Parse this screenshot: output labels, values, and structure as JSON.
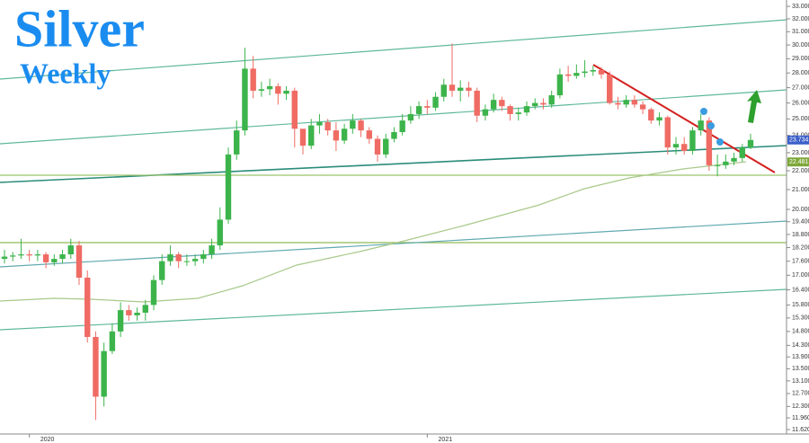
{
  "chart_data": {
    "type": "candlestick",
    "title": "Silver",
    "subtitle": "Weekly",
    "log_scale": true,
    "grid": false,
    "up_color": "#3cb44b",
    "down_color": "#ef6b64",
    "ylim": [
      11.24,
      33.52
    ],
    "yticks": [
      {
        "value": 33,
        "label": "33.000"
      },
      {
        "value": 32,
        "label": "32.000"
      },
      {
        "value": 31,
        "label": "31.000"
      },
      {
        "value": 30,
        "label": "30.000"
      },
      {
        "value": 29,
        "label": "29.000"
      },
      {
        "value": 28,
        "label": "28.000"
      },
      {
        "value": 27,
        "label": "27.000"
      },
      {
        "value": 26,
        "label": "26.000"
      },
      {
        "value": 25,
        "label": "25.000"
      },
      {
        "value": 24,
        "label": "24.000"
      },
      {
        "value": 23,
        "label": "23.000"
      },
      {
        "value": 22,
        "label": "22.000"
      },
      {
        "value": 21,
        "label": "21.000"
      },
      {
        "value": 20,
        "label": "20.000"
      },
      {
        "value": 19.4,
        "label": "19.400"
      },
      {
        "value": 18.8,
        "label": "18.800"
      },
      {
        "value": 18.2,
        "label": "18.200"
      },
      {
        "value": 17.6,
        "label": "17.600"
      },
      {
        "value": 17,
        "label": "17.000"
      },
      {
        "value": 16.4,
        "label": "16.400"
      },
      {
        "value": 15.8,
        "label": "15.800"
      },
      {
        "value": 15.3,
        "label": "15.300"
      },
      {
        "value": 14.8,
        "label": "14.800"
      },
      {
        "value": 14.3,
        "label": "14.300"
      },
      {
        "value": 13.9,
        "label": "13.900"
      },
      {
        "value": 13.5,
        "label": "13.500"
      },
      {
        "value": 13.1,
        "label": "13.100"
      },
      {
        "value": 12.7,
        "label": "12.700"
      },
      {
        "value": 12.3,
        "label": "12.300"
      },
      {
        "value": 11.96,
        "label": "11.960"
      },
      {
        "value": 11.62,
        "label": "11.620"
      }
    ],
    "categories": [
      null,
      null,
      null,
      "2020",
      null,
      null,
      null,
      null,
      null,
      null,
      null,
      null,
      null,
      null,
      null,
      null,
      null,
      null,
      null,
      null,
      null,
      null,
      null,
      null,
      null,
      null,
      null,
      null,
      null,
      null,
      null,
      null,
      null,
      null,
      null,
      null,
      null,
      null,
      null,
      null,
      null,
      null,
      null,
      null,
      null,
      null,
      null,
      null,
      null,
      null,
      null,
      "2021",
      null,
      null,
      null,
      null,
      null,
      null,
      null,
      null,
      null,
      null,
      null,
      null,
      null,
      null,
      null,
      null,
      null,
      null,
      null,
      null,
      null,
      null,
      null,
      null,
      null,
      null,
      null,
      null,
      null,
      null,
      null,
      null,
      null,
      null,
      null,
      null,
      null,
      null,
      null
    ],
    "open": [
      17.7,
      17.8,
      17.85,
      17.9,
      17.85,
      17.9,
      17.55,
      17.7,
      17.9,
      18.3,
      16.9,
      14.6,
      12.6,
      14.1,
      14.8,
      15.6,
      15.4,
      15.5,
      15.8,
      16.8,
      17.6,
      17.9,
      17.6,
      17.6,
      17.7,
      17.9,
      18.3,
      19.5,
      22.9,
      24.3,
      28.3,
      26.8,
      26.9,
      27.1,
      26.6,
      26.8,
      24.4,
      23.4,
      24.6,
      24.8,
      24.3,
      23.7,
      24.4,
      24.9,
      24.3,
      23.8,
      22.9,
      23.8,
      24.2,
      24.9,
      25.3,
      25.8,
      25.7,
      26.4,
      27.2,
      26.8,
      27.0,
      26.8,
      25.2,
      25.6,
      26.2,
      25.8,
      25.3,
      25.4,
      25.8,
      26.0,
      25.9,
      26.5,
      27.9,
      27.8,
      28.0,
      28.1,
      28.2,
      27.9,
      26.0,
      25.9,
      26.2,
      25.9,
      25.6,
      24.9,
      25.1,
      23.3,
      23.5,
      23.1,
      24.3,
      24.9,
      22.3,
      22.3,
      22.5,
      22.7,
      23.3
    ],
    "high": [
      18.1,
      18.0,
      18.6,
      18.1,
      18.1,
      18.0,
      17.9,
      18.1,
      18.6,
      18.5,
      17.2,
      14.8,
      14.4,
      15.1,
      15.9,
      15.8,
      15.7,
      16.0,
      17.0,
      17.9,
      18.3,
      18.0,
      17.9,
      17.9,
      18.1,
      18.6,
      20.1,
      23.3,
      24.9,
      29.8,
      29.2,
      27.4,
      27.6,
      27.3,
      27.1,
      27.0,
      24.2,
      25.0,
      25.3,
      25.0,
      24.8,
      24.7,
      25.3,
      25.0,
      24.5,
      24.0,
      24.1,
      24.5,
      25.3,
      25.8,
      26.1,
      26.2,
      26.7,
      27.6,
      30.1,
      27.5,
      27.4,
      27.0,
      25.9,
      26.6,
      26.4,
      25.9,
      25.7,
      26.1,
      26.3,
      26.3,
      26.8,
      28.3,
      28.5,
      28.6,
      28.9,
      28.5,
      28.4,
      28.1,
      26.4,
      26.5,
      26.5,
      26.1,
      25.7,
      25.4,
      25.2,
      23.9,
      23.9,
      24.5,
      25.3,
      25.1,
      22.9,
      22.9,
      23.0,
      23.5,
      24.1
    ],
    "low": [
      17.5,
      17.6,
      17.7,
      17.6,
      17.6,
      17.3,
      17.4,
      17.5,
      17.7,
      16.6,
      14.4,
      11.9,
      12.3,
      14.0,
      14.6,
      15.2,
      15.2,
      15.2,
      15.6,
      16.6,
      17.4,
      17.3,
      17.4,
      17.4,
      17.5,
      17.7,
      18.1,
      19.3,
      22.6,
      24.0,
      26.3,
      26.4,
      26.5,
      25.9,
      26.2,
      23.3,
      22.9,
      23.2,
      24.1,
      24.0,
      23.1,
      23.5,
      24.1,
      23.9,
      23.5,
      22.5,
      22.7,
      23.6,
      24.0,
      24.7,
      25.0,
      25.3,
      25.5,
      26.1,
      26.4,
      26.1,
      26.4,
      24.8,
      24.9,
      25.4,
      25.5,
      24.9,
      24.9,
      25.2,
      25.6,
      25.6,
      25.7,
      26.3,
      27.4,
      27.6,
      27.7,
      27.8,
      27.6,
      25.9,
      25.6,
      25.7,
      25.7,
      25.3,
      24.7,
      24.6,
      22.9,
      22.9,
      22.9,
      22.9,
      24.0,
      22.0,
      21.7,
      22.1,
      22.3,
      22.5,
      23.2
    ],
    "close": [
      17.8,
      17.85,
      17.9,
      17.85,
      17.9,
      17.55,
      17.7,
      17.9,
      18.3,
      16.9,
      14.6,
      12.6,
      14.1,
      14.8,
      15.6,
      15.4,
      15.5,
      15.8,
      16.8,
      17.6,
      17.9,
      17.6,
      17.6,
      17.7,
      17.9,
      18.3,
      19.5,
      22.9,
      24.3,
      28.3,
      26.8,
      26.9,
      27.1,
      26.6,
      26.8,
      24.4,
      23.4,
      24.6,
      24.8,
      24.3,
      23.7,
      24.4,
      24.9,
      24.3,
      23.8,
      22.9,
      23.8,
      24.2,
      24.9,
      25.3,
      25.8,
      25.7,
      26.4,
      27.2,
      26.8,
      27.0,
      26.8,
      25.2,
      25.6,
      26.2,
      25.8,
      25.3,
      25.4,
      25.8,
      26.0,
      25.9,
      26.5,
      27.9,
      27.8,
      28.0,
      28.1,
      28.2,
      27.9,
      26.0,
      25.9,
      26.2,
      25.9,
      25.6,
      24.9,
      25.1,
      23.3,
      23.5,
      23.1,
      24.3,
      24.9,
      22.3,
      22.3,
      22.5,
      22.7,
      23.3,
      23.734
    ],
    "price_labels": [
      {
        "value": 23.734,
        "label": "23.734",
        "color": "#3a5fc8"
      },
      {
        "value": 22.481,
        "label": "22.481",
        "color": "#7ea83a"
      }
    ]
  }
}
